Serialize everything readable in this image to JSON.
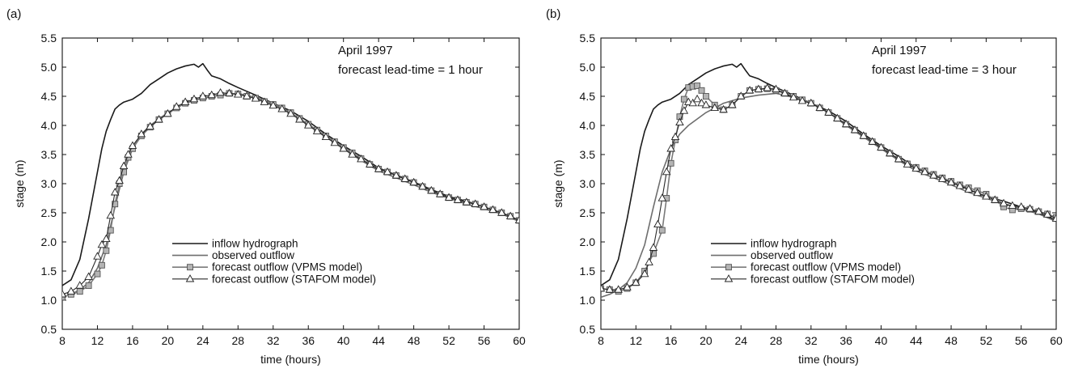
{
  "colors": {
    "inflow": "#1a1a1a",
    "observed": "#6e6e6e",
    "vpms_line": "#7a7a7a",
    "vpms_marker": "#b4b4b4",
    "stafom_line": "#2a2a2a",
    "stafom_marker": "#ffffff"
  },
  "chart_data": [
    {
      "type": "line",
      "panel_label": "(a)",
      "annotation_lines": [
        "April 1997",
        "forecast lead-time = 1 hour"
      ],
      "xlabel": "time (hours)",
      "ylabel": "stage (m)",
      "xlim": [
        8,
        60
      ],
      "ylim": [
        0.5,
        5.5
      ],
      "xticks": [
        "8",
        "12",
        "16",
        "20",
        "24",
        "28",
        "32",
        "36",
        "40",
        "44",
        "48",
        "52",
        "56",
        "60"
      ],
      "yticks": [
        "0.5",
        "1.0",
        "1.5",
        "2.0",
        "2.5",
        "3.0",
        "3.5",
        "4.0",
        "4.5",
        "5.0",
        "5.5"
      ],
      "grid": false,
      "legend_position": "bottom-center",
      "series": [
        {
          "name": "inflow hydrograph",
          "marker": "none",
          "x": [
            8,
            9,
            10,
            11,
            12,
            12.5,
            13,
            13.5,
            14,
            14.5,
            15,
            16,
            17,
            18,
            19,
            20,
            21,
            22,
            23,
            23.5,
            24,
            24.5,
            25,
            26,
            27,
            28,
            30,
            32,
            34,
            36,
            38,
            40,
            42,
            44,
            46,
            48,
            50,
            52,
            54,
            56,
            58,
            60
          ],
          "y": [
            1.25,
            1.35,
            1.7,
            2.4,
            3.2,
            3.6,
            3.9,
            4.1,
            4.28,
            4.35,
            4.4,
            4.45,
            4.55,
            4.7,
            4.8,
            4.9,
            4.97,
            5.02,
            5.05,
            5.0,
            5.06,
            4.95,
            4.85,
            4.8,
            4.72,
            4.65,
            4.52,
            4.38,
            4.25,
            4.07,
            3.85,
            3.65,
            3.47,
            3.27,
            3.15,
            3.03,
            2.9,
            2.78,
            2.7,
            2.6,
            2.5,
            2.37
          ]
        },
        {
          "name": "observed outflow",
          "marker": "none",
          "x": [
            8,
            9,
            10,
            11,
            12,
            13,
            14,
            15,
            16,
            17,
            18,
            20,
            22,
            24,
            26,
            28,
            30,
            32,
            34,
            36,
            38,
            40,
            42,
            44,
            46,
            48,
            50,
            52,
            54,
            56,
            58,
            60
          ],
          "y": [
            1.05,
            1.1,
            1.18,
            1.3,
            1.55,
            1.95,
            2.6,
            3.2,
            3.6,
            3.85,
            4.0,
            4.22,
            4.38,
            4.47,
            4.52,
            4.55,
            4.48,
            4.38,
            4.22,
            4.0,
            3.8,
            3.6,
            3.4,
            3.22,
            3.1,
            2.98,
            2.85,
            2.75,
            2.65,
            2.57,
            2.48,
            2.35
          ]
        },
        {
          "name": "forecast outflow (VPMS model)",
          "marker": "square",
          "x": [
            8,
            9,
            10,
            11,
            12,
            12.5,
            13,
            13.5,
            14,
            14.5,
            15,
            15.5,
            16,
            17,
            18,
            19,
            20,
            21,
            22,
            23,
            24,
            25,
            26,
            27,
            28,
            29,
            30,
            31,
            32,
            33,
            34,
            35,
            36,
            37,
            38,
            39,
            40,
            41,
            42,
            43,
            44,
            45,
            46,
            47,
            48,
            49,
            50,
            51,
            52,
            53,
            54,
            55,
            56,
            57,
            58,
            59,
            60
          ],
          "y": [
            1.05,
            1.1,
            1.15,
            1.25,
            1.45,
            1.6,
            1.85,
            2.2,
            2.65,
            3.0,
            3.2,
            3.45,
            3.6,
            3.82,
            3.97,
            4.1,
            4.2,
            4.3,
            4.38,
            4.43,
            4.47,
            4.5,
            4.52,
            4.55,
            4.54,
            4.5,
            4.47,
            4.41,
            4.36,
            4.3,
            4.22,
            4.12,
            4.02,
            3.92,
            3.82,
            3.72,
            3.62,
            3.53,
            3.43,
            3.33,
            3.25,
            3.2,
            3.14,
            3.08,
            3.02,
            2.95,
            2.88,
            2.82,
            2.76,
            2.72,
            2.68,
            2.65,
            2.6,
            2.55,
            2.5,
            2.44,
            2.37
          ]
        },
        {
          "name": "forecast outflow (STAFOM model)",
          "marker": "triangle",
          "x": [
            8,
            9,
            10,
            11,
            12,
            12.5,
            13,
            13.5,
            14,
            14.5,
            15,
            15.5,
            16,
            17,
            18,
            19,
            20,
            21,
            22,
            23,
            24,
            25,
            26,
            27,
            28,
            29,
            30,
            31,
            32,
            33,
            34,
            35,
            36,
            37,
            38,
            39,
            40,
            41,
            42,
            43,
            44,
            45,
            46,
            47,
            48,
            49,
            50,
            51,
            52,
            53,
            54,
            55,
            56,
            57,
            58,
            59,
            60
          ],
          "y": [
            1.1,
            1.15,
            1.25,
            1.4,
            1.75,
            1.95,
            2.05,
            2.45,
            2.85,
            3.05,
            3.3,
            3.5,
            3.65,
            3.85,
            3.98,
            4.1,
            4.2,
            4.32,
            4.4,
            4.45,
            4.5,
            4.52,
            4.56,
            4.55,
            4.53,
            4.5,
            4.46,
            4.4,
            4.34,
            4.28,
            4.2,
            4.1,
            4.0,
            3.9,
            3.8,
            3.7,
            3.6,
            3.5,
            3.42,
            3.33,
            3.25,
            3.2,
            3.14,
            3.08,
            3.02,
            2.95,
            2.88,
            2.82,
            2.76,
            2.72,
            2.68,
            2.65,
            2.6,
            2.55,
            2.5,
            2.44,
            2.37
          ]
        }
      ]
    },
    {
      "type": "line",
      "panel_label": "(b)",
      "annotation_lines": [
        "April 1997",
        "forecast lead-time = 3 hour"
      ],
      "xlabel": "time (hours)",
      "ylabel": "stage (m)",
      "xlim": [
        8,
        60
      ],
      "ylim": [
        0.5,
        5.5
      ],
      "xticks": [
        "8",
        "12",
        "16",
        "20",
        "24",
        "28",
        "32",
        "36",
        "40",
        "44",
        "48",
        "52",
        "56",
        "60"
      ],
      "yticks": [
        "0.5",
        "1.0",
        "1.5",
        "2.0",
        "2.5",
        "3.0",
        "3.5",
        "4.0",
        "4.5",
        "5.0",
        "5.5"
      ],
      "grid": false,
      "legend_position": "bottom-center",
      "series": [
        {
          "name": "inflow hydrograph",
          "marker": "none",
          "x": [
            8,
            9,
            10,
            11,
            12,
            12.5,
            13,
            13.5,
            14,
            14.5,
            15,
            16,
            17,
            18,
            19,
            20,
            21,
            22,
            23,
            23.5,
            24,
            24.5,
            25,
            26,
            27,
            28,
            30,
            32,
            34,
            36,
            38,
            40,
            42,
            44,
            46,
            48,
            50,
            52,
            54,
            56,
            58,
            60
          ],
          "y": [
            1.25,
            1.35,
            1.7,
            2.4,
            3.2,
            3.6,
            3.9,
            4.1,
            4.28,
            4.35,
            4.4,
            4.45,
            4.55,
            4.7,
            4.8,
            4.9,
            4.97,
            5.02,
            5.05,
            5.0,
            5.06,
            4.95,
            4.85,
            4.8,
            4.72,
            4.65,
            4.52,
            4.38,
            4.25,
            4.07,
            3.85,
            3.65,
            3.47,
            3.27,
            3.15,
            3.03,
            2.9,
            2.78,
            2.7,
            2.6,
            2.5,
            2.37
          ]
        },
        {
          "name": "observed outflow",
          "marker": "none",
          "x": [
            8,
            9,
            10,
            11,
            12,
            13,
            14,
            15,
            16,
            17,
            18,
            20,
            22,
            24,
            26,
            28,
            30,
            32,
            34,
            36,
            38,
            40,
            42,
            44,
            46,
            48,
            50,
            52,
            54,
            56,
            58,
            60
          ],
          "y": [
            1.05,
            1.1,
            1.18,
            1.3,
            1.55,
            1.95,
            2.6,
            3.2,
            3.6,
            3.85,
            4.0,
            4.22,
            4.38,
            4.47,
            4.52,
            4.55,
            4.48,
            4.38,
            4.22,
            4.0,
            3.8,
            3.6,
            3.4,
            3.22,
            3.1,
            2.98,
            2.85,
            2.75,
            2.65,
            2.57,
            2.48,
            2.35
          ]
        },
        {
          "name": "forecast outflow (VPMS model)",
          "marker": "square",
          "x": [
            8,
            9,
            10,
            11,
            12,
            13,
            14,
            15,
            15.5,
            16,
            16.5,
            17,
            17.5,
            18,
            18.5,
            19,
            19.5,
            20,
            21,
            22,
            23,
            24,
            25,
            26,
            27,
            28,
            29,
            30,
            31,
            32,
            33,
            34,
            35,
            36,
            37,
            38,
            39,
            40,
            41,
            42,
            43,
            44,
            45,
            46,
            47,
            48,
            49,
            50,
            51,
            52,
            53,
            54,
            55,
            56,
            57,
            58,
            59,
            60
          ],
          "y": [
            1.2,
            1.18,
            1.15,
            1.2,
            1.3,
            1.5,
            1.8,
            2.2,
            2.75,
            3.35,
            3.75,
            4.15,
            4.45,
            4.65,
            4.67,
            4.68,
            4.6,
            4.5,
            4.35,
            4.27,
            4.35,
            4.5,
            4.6,
            4.62,
            4.63,
            4.6,
            4.55,
            4.5,
            4.44,
            4.38,
            4.3,
            4.22,
            4.12,
            4.02,
            3.92,
            3.82,
            3.72,
            3.62,
            3.52,
            3.42,
            3.34,
            3.28,
            3.22,
            3.16,
            3.1,
            3.04,
            2.98,
            2.93,
            2.88,
            2.82,
            2.72,
            2.6,
            2.55,
            2.57,
            2.56,
            2.52,
            2.48,
            2.42
          ]
        },
        {
          "name": "forecast outflow (STAFOM model)",
          "marker": "triangle",
          "x": [
            8,
            9,
            10,
            11,
            12,
            13,
            13.5,
            14,
            14.5,
            15,
            15.5,
            16,
            16.5,
            17,
            17.5,
            18,
            18.5,
            19,
            19.5,
            20,
            21,
            22,
            23,
            24,
            25,
            26,
            27,
            28,
            29,
            30,
            31,
            32,
            33,
            34,
            35,
            36,
            37,
            38,
            39,
            40,
            41,
            42,
            43,
            44,
            45,
            46,
            47,
            48,
            49,
            50,
            51,
            52,
            53,
            54,
            55,
            56,
            57,
            58,
            59,
            60
          ],
          "y": [
            1.2,
            1.18,
            1.18,
            1.22,
            1.3,
            1.45,
            1.65,
            1.9,
            2.3,
            2.75,
            3.2,
            3.6,
            3.8,
            4.05,
            4.25,
            4.4,
            4.38,
            4.45,
            4.38,
            4.35,
            4.3,
            4.27,
            4.35,
            4.5,
            4.6,
            4.62,
            4.64,
            4.62,
            4.55,
            4.48,
            4.42,
            4.38,
            4.3,
            4.22,
            4.12,
            4.02,
            3.92,
            3.82,
            3.72,
            3.62,
            3.52,
            3.42,
            3.33,
            3.26,
            3.2,
            3.14,
            3.08,
            3.02,
            2.96,
            2.9,
            2.84,
            2.78,
            2.72,
            2.66,
            2.62,
            2.6,
            2.57,
            2.52,
            2.47,
            2.4
          ]
        }
      ]
    }
  ]
}
